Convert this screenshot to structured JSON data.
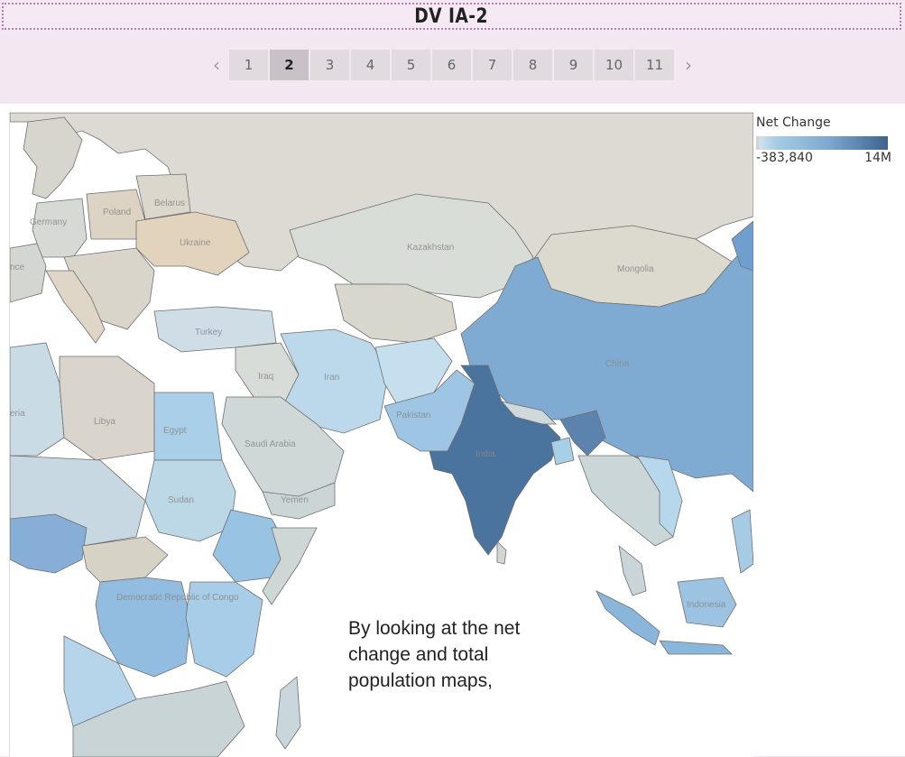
{
  "header": {
    "title": "DV IA-2"
  },
  "pager": {
    "prev_icon": "chevron-left-icon",
    "next_icon": "chevron-right-icon",
    "pages": [
      "1",
      "2",
      "3",
      "4",
      "5",
      "6",
      "7",
      "8",
      "9",
      "10",
      "11"
    ],
    "active_page": "2"
  },
  "legend": {
    "title": "Net Change",
    "min_label": "-383,840",
    "max_label": "14M",
    "colors": {
      "low": "#d8cbb6",
      "mid": "#a6cde6",
      "high": "#3e648f"
    }
  },
  "map": {
    "labels": {
      "germany": "Germany",
      "poland": "Poland",
      "belarus": "Belarus",
      "ukraine": "Ukraine",
      "france": "nce",
      "turkey": "Turkey",
      "iraq": "Iraq",
      "iran": "Iran",
      "kazakhstan": "Kazakhstan",
      "mongolia": "Mongolia",
      "china": "China",
      "pakistan": "Pakistan",
      "india": "India",
      "algeria": "eria",
      "libya": "Libya",
      "egypt": "Egypt",
      "saudi": "Saudi Arabia",
      "yemen": "Yemen",
      "sudan": "Sudan",
      "drc": "Democratic Republic of Congo",
      "indonesia": "Indonesia"
    }
  },
  "annotation": {
    "lines": [
      "By looking at the net",
      "change and total",
      "population maps,"
    ]
  }
}
